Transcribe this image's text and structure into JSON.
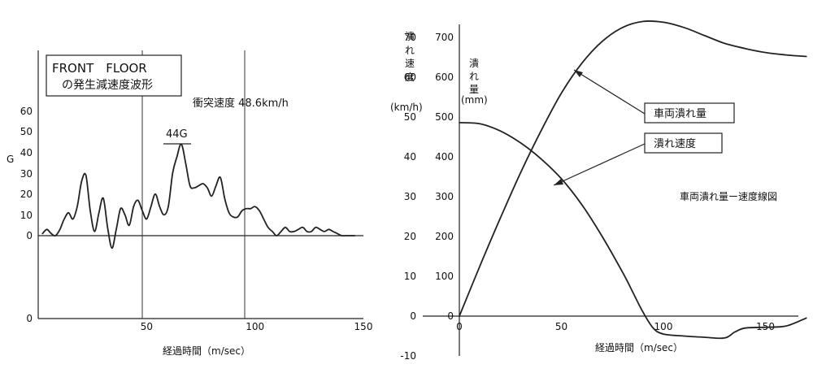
{
  "chart_data": [
    {
      "type": "line",
      "title": "FRONT　FLOOR",
      "subtitle": "の発生減速度波形",
      "annotation": "衝突速度 48.6km/h",
      "peak_label": "44G",
      "xlabel": "経過時間（m/sec）",
      "ylabel": "G",
      "xlim": [
        0,
        150
      ],
      "ylim": [
        -5,
        65
      ],
      "x_ticks": [
        "50",
        "100",
        "150"
      ],
      "y_ticks": [
        "0",
        "0",
        "10",
        "20",
        "30",
        "40",
        "50",
        "60"
      ],
      "grid": "vertical lines at 50 and 100",
      "series": [
        {
          "x": [
            2,
            4,
            6,
            8,
            10,
            12,
            14,
            16,
            18,
            20,
            22,
            24,
            26,
            28,
            30,
            32,
            34,
            36,
            38,
            40,
            42,
            44,
            46,
            48,
            50,
            52,
            54,
            56,
            58,
            60,
            62,
            64,
            66,
            68,
            70,
            72,
            74,
            76,
            78,
            80,
            82,
            84,
            86,
            88,
            90,
            92,
            94,
            96,
            98,
            100,
            102,
            104,
            106,
            108,
            110,
            112,
            114,
            116,
            118,
            120,
            122,
            124,
            126,
            128,
            130,
            132,
            134,
            136,
            138,
            140,
            142,
            144,
            146
          ],
          "values": [
            1,
            3,
            1,
            0,
            3,
            8,
            11,
            8,
            14,
            26,
            29,
            12,
            2,
            11,
            18,
            4,
            -6,
            3,
            13,
            10,
            5,
            14,
            17,
            12,
            8,
            14,
            20,
            14,
            10,
            14,
            30,
            38,
            44,
            35,
            24,
            23,
            24,
            25,
            23,
            19,
            24,
            28,
            18,
            11,
            9,
            9,
            12,
            13,
            13,
            14,
            12,
            8,
            4,
            2,
            0,
            2,
            4,
            2,
            2,
            3,
            4,
            2,
            2,
            4,
            3,
            2,
            3,
            2,
            1,
            0,
            0,
            0,
            0
          ]
        }
      ]
    },
    {
      "type": "line",
      "annotation": "車両潰れ量ー速度線図",
      "xlabel": "経過時間（m/sec）",
      "y1label": [
        "潰",
        "れ",
        "速",
        "度",
        "(km/h)"
      ],
      "y2label": [
        "潰",
        "れ",
        "量",
        "(mm)"
      ],
      "xlim": [
        0,
        170
      ],
      "y1lim": [
        -10,
        75
      ],
      "y2lim": [
        -100,
        750
      ],
      "x_ticks": [
        "0",
        "50",
        "100",
        "150"
      ],
      "y1_ticks": [
        "-10",
        "0",
        "10",
        "20",
        "30",
        "40",
        "50",
        "60",
        "70"
      ],
      "y2_ticks": [
        "0",
        "100",
        "200",
        "300",
        "400",
        "500",
        "600",
        "700"
      ],
      "series": [
        {
          "name": "車両潰れ量",
          "axis": "right",
          "x": [
            0,
            10,
            20,
            30,
            40,
            50,
            60,
            70,
            80,
            90,
            100,
            110,
            120,
            130,
            140,
            150,
            160,
            170
          ],
          "values": [
            0,
            125,
            245,
            360,
            465,
            560,
            635,
            690,
            725,
            740,
            738,
            725,
            705,
            685,
            672,
            662,
            656,
            652
          ]
        },
        {
          "name": "潰れ速度",
          "axis": "left",
          "x": [
            0,
            10,
            20,
            30,
            40,
            50,
            60,
            70,
            80,
            85,
            90,
            95,
            100,
            110,
            120,
            130,
            135,
            140,
            150,
            160,
            170
          ],
          "values": [
            48.6,
            48.3,
            46.5,
            43.5,
            39.5,
            34.5,
            28,
            20,
            11,
            6,
            1,
            -3,
            -4.5,
            -5,
            -5.3,
            -5.5,
            -4,
            -3,
            -2.8,
            -2.5,
            -0.5
          ]
        }
      ]
    }
  ]
}
